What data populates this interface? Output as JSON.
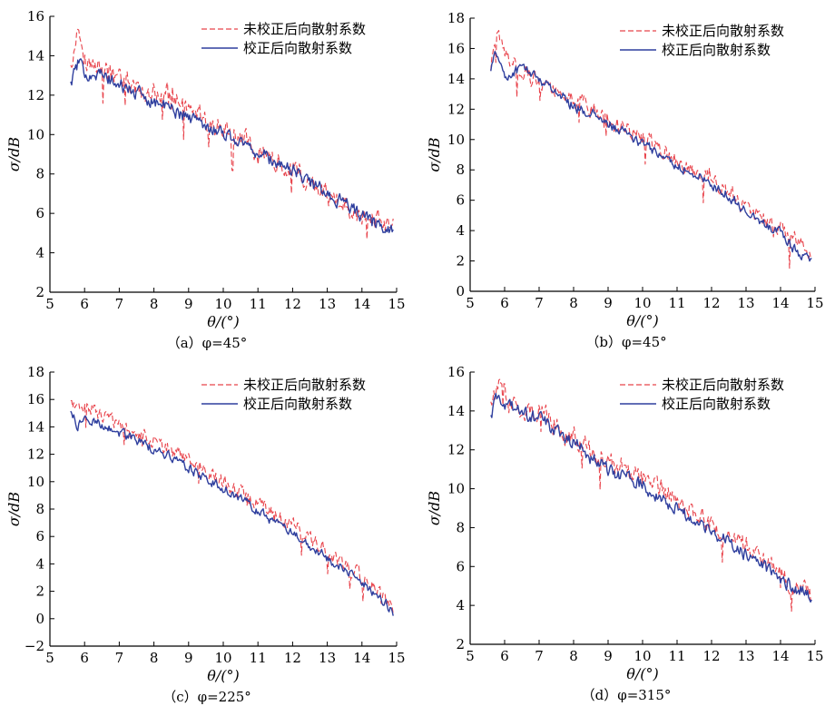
{
  "colors": {
    "uncorrected": "#e8434b",
    "corrected": "#2f3f9e",
    "axis": "#000000"
  },
  "chart_data": [
    {
      "id": "a",
      "type": "line",
      "caption": "（a）φ=45°",
      "xlabel": "θ/(°)",
      "ylabel": "σ/dB",
      "xlim": [
        5,
        15
      ],
      "ylim": [
        2,
        16
      ],
      "xticks": [
        5,
        6,
        7,
        8,
        9,
        10,
        11,
        12,
        13,
        14,
        15
      ],
      "yticks": [
        2,
        4,
        6,
        8,
        10,
        12,
        14,
        16
      ],
      "legend_position": "top-right",
      "grid": false,
      "series": [
        {
          "name": "未校正后向散射系数",
          "style": "dashed",
          "color_key": "uncorrected",
          "x": [
            5.6,
            5.8,
            6.0,
            6.5,
            7.0,
            7.5,
            8.0,
            8.5,
            9.0,
            9.5,
            10.0,
            10.5,
            11.0,
            11.5,
            12.0,
            12.5,
            13.0,
            13.5,
            14.0,
            14.5,
            14.9
          ],
          "y": [
            13.4,
            15.2,
            13.8,
            13.3,
            12.8,
            12.4,
            12.2,
            12.0,
            11.2,
            10.8,
            10.2,
            9.9,
            9.3,
            8.8,
            8.4,
            7.6,
            6.9,
            6.6,
            5.8,
            5.6,
            5.2
          ]
        },
        {
          "name": "校正后向散射系数",
          "style": "solid",
          "color_key": "corrected",
          "x": [
            5.6,
            5.8,
            6.0,
            6.5,
            7.0,
            7.5,
            8.0,
            8.5,
            9.0,
            9.5,
            10.0,
            10.5,
            11.0,
            11.5,
            12.0,
            12.5,
            13.0,
            13.5,
            14.0,
            14.5,
            14.9
          ],
          "y": [
            12.6,
            13.6,
            13.2,
            13.0,
            12.5,
            12.1,
            11.7,
            11.3,
            10.9,
            10.5,
            10.1,
            9.6,
            9.1,
            8.6,
            8.2,
            7.6,
            7.0,
            6.5,
            5.9,
            5.4,
            5.3
          ]
        }
      ]
    },
    {
      "id": "b",
      "type": "line",
      "caption": "（b）φ=45°",
      "xlabel": "θ/(°)",
      "ylabel": "σ/dB",
      "xlim": [
        5,
        15
      ],
      "ylim": [
        0,
        18
      ],
      "xticks": [
        5,
        6,
        7,
        8,
        9,
        10,
        11,
        12,
        13,
        14,
        15
      ],
      "yticks": [
        0,
        2,
        4,
        6,
        8,
        10,
        12,
        14,
        16,
        18
      ],
      "legend_position": "top-right",
      "grid": false,
      "series": [
        {
          "name": "未校正后向散射系数",
          "style": "dashed",
          "color_key": "uncorrected",
          "x": [
            5.6,
            5.8,
            6.0,
            6.5,
            7.0,
            7.5,
            8.0,
            8.5,
            9.0,
            9.5,
            10.0,
            10.5,
            11.0,
            11.5,
            12.0,
            12.5,
            13.0,
            13.5,
            14.0,
            14.5,
            14.9
          ],
          "y": [
            15.0,
            16.8,
            15.6,
            14.6,
            14.0,
            13.4,
            12.6,
            12.3,
            11.4,
            10.8,
            10.2,
            9.4,
            8.6,
            8.0,
            7.4,
            6.6,
            5.4,
            4.8,
            4.2,
            3.2,
            2.6
          ]
        },
        {
          "name": "校正后向散射系数",
          "style": "solid",
          "color_key": "corrected",
          "x": [
            5.6,
            5.8,
            6.0,
            6.5,
            7.0,
            7.5,
            8.0,
            8.5,
            9.0,
            9.5,
            10.0,
            10.5,
            11.0,
            11.5,
            12.0,
            12.5,
            13.0,
            13.5,
            14.0,
            14.5,
            14.9
          ],
          "y": [
            14.8,
            15.8,
            14.0,
            14.8,
            14.0,
            13.2,
            12.2,
            11.7,
            11.0,
            10.4,
            9.7,
            9.0,
            8.3,
            7.7,
            7.0,
            6.3,
            5.3,
            4.6,
            3.8,
            2.6,
            2.0
          ]
        }
      ]
    },
    {
      "id": "c",
      "type": "line",
      "caption": "（c）φ=225°",
      "xlabel": "θ/(°)",
      "ylabel": "σ/dB",
      "xlim": [
        5,
        15
      ],
      "ylim": [
        -2,
        18
      ],
      "xticks": [
        5,
        6,
        7,
        8,
        9,
        10,
        11,
        12,
        13,
        14,
        15
      ],
      "yticks": [
        -2,
        0,
        2,
        4,
        6,
        8,
        10,
        12,
        14,
        16,
        18
      ],
      "legend_position": "top-right",
      "grid": false,
      "series": [
        {
          "name": "未校正后向散射系数",
          "style": "dashed",
          "color_key": "uncorrected",
          "x": [
            5.6,
            5.8,
            6.0,
            6.5,
            7.0,
            7.5,
            8.0,
            8.5,
            9.0,
            9.5,
            10.0,
            10.5,
            11.0,
            11.5,
            12.0,
            12.5,
            13.0,
            13.5,
            14.0,
            14.5,
            14.9
          ],
          "y": [
            16.0,
            15.2,
            15.6,
            14.8,
            14.0,
            13.5,
            13.0,
            12.3,
            11.6,
            10.6,
            10.0,
            9.2,
            8.4,
            7.6,
            6.8,
            6.0,
            4.9,
            4.0,
            3.0,
            2.2,
            0.5
          ]
        },
        {
          "name": "校正后向散射系数",
          "style": "solid",
          "color_key": "corrected",
          "x": [
            5.6,
            5.8,
            6.0,
            6.5,
            7.0,
            7.5,
            8.0,
            8.5,
            9.0,
            9.5,
            10.0,
            10.5,
            11.0,
            11.5,
            12.0,
            12.5,
            13.0,
            13.5,
            14.0,
            14.5,
            14.9
          ],
          "y": [
            15.2,
            14.0,
            14.6,
            14.2,
            13.6,
            13.0,
            12.4,
            11.8,
            11.0,
            10.2,
            9.5,
            8.7,
            7.9,
            7.0,
            6.2,
            5.4,
            4.4,
            3.6,
            2.6,
            1.6,
            0.5
          ]
        }
      ]
    },
    {
      "id": "d",
      "type": "line",
      "caption": "（d）φ=315°",
      "xlabel": "θ/(°)",
      "ylabel": "σ/dB",
      "xlim": [
        5,
        15
      ],
      "ylim": [
        2,
        16
      ],
      "xticks": [
        5,
        6,
        7,
        8,
        9,
        10,
        11,
        12,
        13,
        14,
        15
      ],
      "yticks": [
        2,
        4,
        6,
        8,
        10,
        12,
        14,
        16
      ],
      "legend_position": "top-right",
      "grid": false,
      "series": [
        {
          "name": "未校正后向散射系数",
          "style": "dashed",
          "color_key": "uncorrected",
          "x": [
            5.6,
            5.8,
            6.0,
            6.5,
            7.0,
            7.5,
            8.0,
            8.5,
            9.0,
            9.5,
            10.0,
            10.5,
            11.0,
            11.5,
            12.0,
            12.5,
            13.0,
            13.5,
            14.0,
            14.5,
            14.9
          ],
          "y": [
            14.2,
            15.4,
            14.8,
            14.0,
            14.0,
            13.2,
            12.6,
            12.0,
            11.4,
            11.0,
            10.6,
            10.0,
            9.4,
            8.8,
            8.2,
            7.6,
            7.0,
            6.4,
            5.6,
            5.0,
            4.4
          ]
        },
        {
          "name": "校正后向散射系数",
          "style": "solid",
          "color_key": "corrected",
          "x": [
            5.6,
            5.8,
            6.0,
            6.5,
            7.0,
            7.5,
            8.0,
            8.5,
            9.0,
            9.5,
            10.0,
            10.5,
            11.0,
            11.5,
            12.0,
            12.5,
            13.0,
            13.5,
            14.0,
            14.5,
            14.9
          ],
          "y": [
            13.6,
            14.8,
            14.4,
            13.8,
            13.6,
            13.0,
            12.4,
            11.6,
            11.0,
            10.6,
            10.2,
            9.6,
            9.0,
            8.4,
            7.8,
            7.2,
            6.6,
            6.0,
            5.4,
            4.8,
            4.6
          ]
        }
      ]
    }
  ]
}
